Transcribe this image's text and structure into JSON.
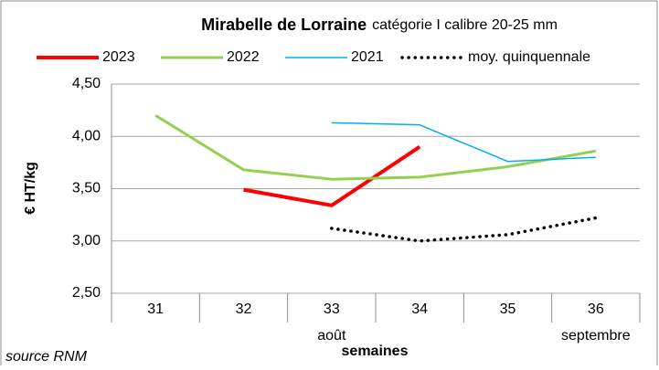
{
  "chart_data": {
    "type": "line",
    "title": "Mirabelle de Lorraine",
    "subtitle": "catégorie I calibre 20-25 mm",
    "ylabel": "€ HT/kg",
    "xlabel": "semaines",
    "source": "source RNM",
    "categories": [
      "31",
      "32",
      "33",
      "34",
      "35",
      "36"
    ],
    "annotations": [
      {
        "text": "août",
        "x": "33"
      },
      {
        "text": "septembre",
        "x": "36"
      }
    ],
    "series": [
      {
        "name": "2023",
        "color": "#ff0000",
        "width": 4,
        "style": "solid",
        "values": [
          null,
          3.49,
          3.34,
          3.9,
          null,
          null
        ]
      },
      {
        "name": "2022",
        "color": "#92d050",
        "width": 3,
        "style": "solid",
        "values": [
          4.2,
          3.68,
          3.59,
          3.61,
          3.71,
          3.86
        ]
      },
      {
        "name": "2021",
        "color": "#00b0f0",
        "width": 1.5,
        "style": "solid",
        "values": [
          null,
          null,
          4.13,
          4.11,
          3.76,
          3.8
        ]
      },
      {
        "name": "moy. quinquennale",
        "color": "#000000",
        "width": 3.5,
        "style": "dotted",
        "values": [
          null,
          null,
          3.12,
          3.0,
          3.06,
          3.22
        ]
      }
    ],
    "ylim": [
      2.5,
      4.5
    ],
    "yticks": [
      {
        "value": 2.5,
        "label": "2,50"
      },
      {
        "value": 3.0,
        "label": "3,00"
      },
      {
        "value": 3.5,
        "label": "3,50"
      },
      {
        "value": 4.0,
        "label": "4,00"
      },
      {
        "value": 4.5,
        "label": "4,50"
      }
    ],
    "grid": true,
    "legend": "top"
  }
}
